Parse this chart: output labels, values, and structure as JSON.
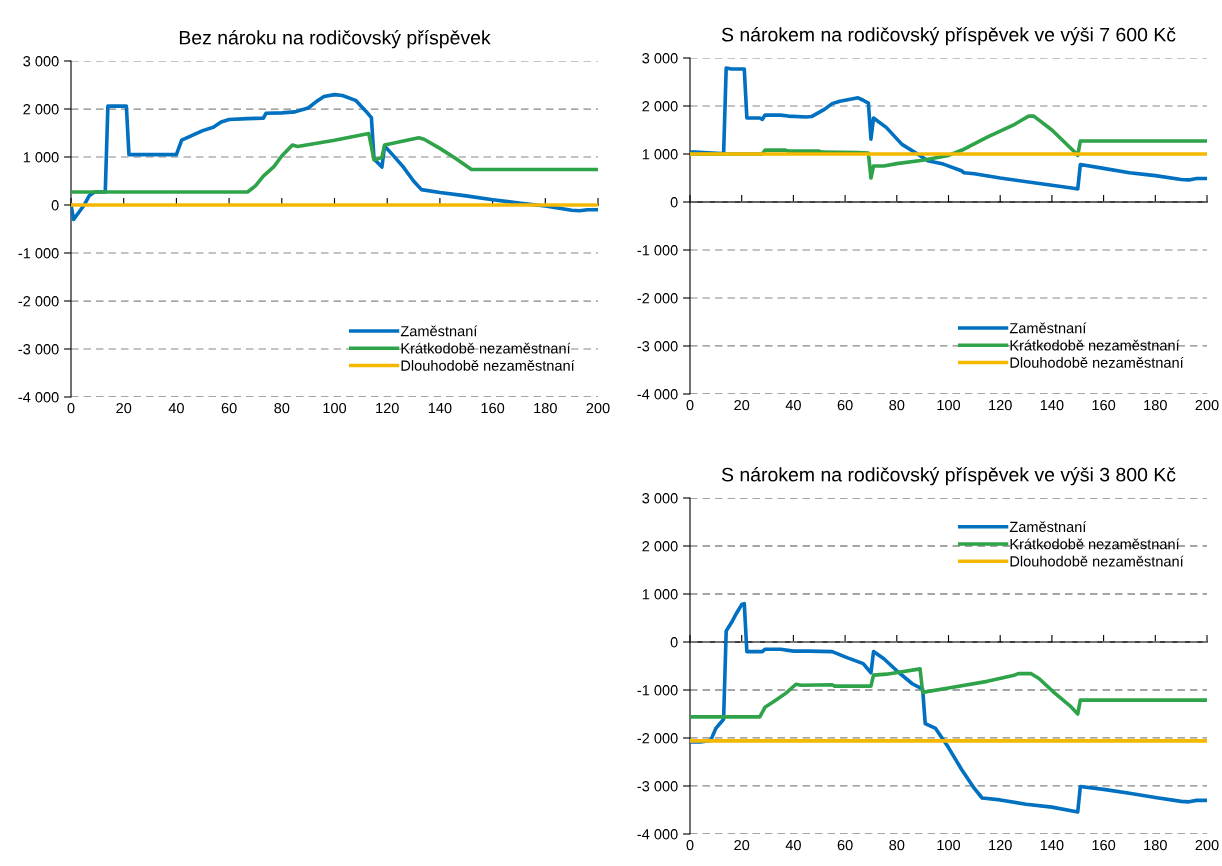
{
  "chart_data": [
    {
      "type": "line",
      "title": "Bez nároku na rodičovský příspěvek",
      "xlim": [
        0,
        200
      ],
      "xticks": [
        0,
        20,
        40,
        60,
        80,
        100,
        120,
        140,
        160,
        180,
        200
      ],
      "ylim": [
        -4000,
        3000
      ],
      "yticks": [
        {
          "value": 3000,
          "label": "3 000"
        },
        {
          "value": 2000,
          "label": "2 000"
        },
        {
          "value": 1000,
          "label": "1 000"
        },
        0,
        {
          "value": -1000,
          "label": "-1 000"
        },
        {
          "value": -2000,
          "label": "-2 000"
        },
        {
          "value": -3000,
          "label": "-3 000"
        },
        {
          "value": -4000,
          "label": "-4 000"
        }
      ],
      "grid": "y",
      "legend": "bottom right",
      "marker": "none",
      "line_style": "solid",
      "series": [
        {
          "name": "Zaměstnaní",
          "color": "#0070c0",
          "x": [
            0,
            1,
            3,
            5,
            7,
            9,
            13,
            14,
            21,
            22,
            30,
            40,
            42,
            46,
            50,
            54,
            57,
            60,
            67,
            73,
            74,
            80,
            85,
            90,
            93,
            96,
            100,
            103,
            108,
            112,
            114,
            115,
            118,
            119,
            122,
            126,
            130,
            133,
            140,
            150,
            160,
            170,
            180,
            190,
            193,
            196,
            200
          ],
          "values": [
            0,
            -300,
            -150,
            0,
            200,
            270,
            270,
            2060,
            2060,
            1050,
            1050,
            1050,
            1350,
            1450,
            1550,
            1620,
            1730,
            1780,
            1800,
            1810,
            1910,
            1920,
            1940,
            2020,
            2150,
            2260,
            2300,
            2280,
            2180,
            1950,
            1820,
            960,
            790,
            1230,
            1050,
            800,
            500,
            320,
            260,
            190,
            110,
            40,
            -20,
            -110,
            -120,
            -100,
            -100
          ]
        },
        {
          "name": "Krátkodobě nezaměstnaní",
          "color": "#2ea34a",
          "x": [
            0,
            67,
            70,
            73,
            77,
            80,
            84,
            86,
            100,
            113,
            115,
            118,
            119,
            132,
            134,
            140,
            146,
            152,
            200
          ],
          "values": [
            270,
            270,
            400,
            600,
            800,
            1020,
            1250,
            1220,
            1350,
            1490,
            940,
            990,
            1250,
            1400,
            1370,
            1180,
            970,
            740,
            740
          ]
        },
        {
          "name": "Dlouhodobě nezaměstnaní",
          "color": "#f5b800",
          "x": [
            0,
            200
          ],
          "values": [
            0,
            0
          ]
        }
      ]
    },
    {
      "type": "line",
      "title": "S nárokem na rodičovský příspěvek ve výši 7 600 Kč",
      "xlim": [
        0,
        200
      ],
      "xticks": [
        0,
        20,
        40,
        60,
        80,
        100,
        120,
        140,
        160,
        180,
        200
      ],
      "ylim": [
        -4000,
        3000
      ],
      "yticks": [
        {
          "value": 3000,
          "label": "3 000"
        },
        {
          "value": 2000,
          "label": "2 000"
        },
        {
          "value": 1000,
          "label": "1 000"
        },
        0,
        {
          "value": -1000,
          "label": "-1 000"
        },
        {
          "value": -2000,
          "label": "-2 000"
        },
        {
          "value": -3000,
          "label": "-3 000"
        },
        {
          "value": -4000,
          "label": "-4 000"
        }
      ],
      "grid": "y",
      "legend": "bottom right",
      "marker": "none",
      "line_style": "solid",
      "series": [
        {
          "name": "Zaměstnaní",
          "color": "#0070c0",
          "x": [
            0,
            2,
            12,
            13,
            14,
            16,
            21,
            22,
            27,
            28,
            29,
            35,
            38,
            45,
            47,
            52,
            55,
            58,
            63,
            65,
            67,
            69,
            70,
            71,
            76,
            82,
            88,
            92,
            98,
            105,
            106,
            110,
            120,
            140,
            149,
            150,
            151,
            160,
            170,
            180,
            190,
            193,
            196,
            200
          ],
          "values": [
            1040,
            1040,
            1010,
            1000,
            2790,
            2770,
            2770,
            1750,
            1750,
            1720,
            1810,
            1810,
            1790,
            1770,
            1780,
            1930,
            2050,
            2100,
            2150,
            2170,
            2120,
            2060,
            1310,
            1750,
            1550,
            1200,
            1000,
            860,
            790,
            650,
            610,
            590,
            500,
            350,
            280,
            270,
            780,
            700,
            610,
            550,
            470,
            460,
            490,
            490
          ]
        },
        {
          "name": "Krátkodobě nezaměstnaní",
          "color": "#2ea34a",
          "x": [
            0,
            28,
            29,
            37,
            38,
            50,
            51,
            65,
            69,
            70,
            71,
            75,
            80,
            90,
            100,
            106,
            115,
            125,
            131,
            133,
            140,
            149,
            150,
            151,
            200
          ],
          "values": [
            1000,
            1000,
            1080,
            1080,
            1060,
            1060,
            1040,
            1030,
            1020,
            500,
            750,
            750,
            800,
            870,
            970,
            1100,
            1350,
            1600,
            1790,
            1790,
            1500,
            1030,
            970,
            1270,
            1270
          ]
        },
        {
          "name": "Dlouhodobě nezaměstnaní",
          "color": "#f5b800",
          "x": [
            0,
            200
          ],
          "values": [
            1000,
            1000
          ]
        }
      ]
    },
    {
      "type": "line",
      "title": "S nárokem na rodičovský příspěvek ve výši 3 800 Kč",
      "xlim": [
        0,
        200
      ],
      "xticks": [
        0,
        20,
        40,
        60,
        80,
        100,
        120,
        140,
        160,
        180,
        200
      ],
      "ylim": [
        -4000,
        3000
      ],
      "yticks": [
        {
          "value": 3000,
          "label": "3 000"
        },
        {
          "value": 2000,
          "label": "2 000"
        },
        {
          "value": 1000,
          "label": "1 000"
        },
        0,
        {
          "value": -1000,
          "label": "-1 000"
        },
        {
          "value": -2000,
          "label": "-2 000"
        },
        {
          "value": -3000,
          "label": "-3 000"
        },
        {
          "value": -4000,
          "label": "-4 000"
        }
      ],
      "grid": "y",
      "legend": "top right",
      "marker": "none",
      "line_style": "solid",
      "series": [
        {
          "name": "Zaměstnaní",
          "color": "#0070c0",
          "x": [
            0,
            4,
            8,
            10,
            13,
            14,
            16,
            18,
            20,
            21,
            22,
            28,
            29,
            35,
            40,
            46,
            55,
            61,
            67,
            70,
            71,
            75,
            80,
            86,
            90,
            91,
            95,
            100,
            105,
            110,
            113,
            120,
            130,
            140,
            149,
            150,
            151,
            160,
            170,
            180,
            190,
            193,
            196,
            200
          ],
          "values": [
            -2080,
            -2080,
            -2050,
            -1800,
            -1610,
            230,
            400,
            600,
            780,
            800,
            -200,
            -200,
            -150,
            -150,
            -190,
            -190,
            -200,
            -330,
            -450,
            -640,
            -200,
            -350,
            -600,
            -870,
            -980,
            -1700,
            -1800,
            -2200,
            -2650,
            -3050,
            -3250,
            -3290,
            -3380,
            -3440,
            -3530,
            -3540,
            -3010,
            -3070,
            -3150,
            -3240,
            -3320,
            -3330,
            -3300,
            -3300
          ]
        },
        {
          "name": "Krátkodobě nezaměstnaní",
          "color": "#2ea34a",
          "x": [
            0,
            27,
            29,
            33,
            37,
            41,
            43,
            55,
            56,
            70,
            71,
            76,
            89,
            90,
            100,
            115,
            125,
            127,
            132,
            135,
            141,
            147,
            150,
            151,
            200
          ],
          "values": [
            -1560,
            -1560,
            -1360,
            -1220,
            -1070,
            -880,
            -900,
            -890,
            -920,
            -920,
            -690,
            -670,
            -560,
            -1050,
            -960,
            -820,
            -700,
            -660,
            -660,
            -760,
            -1060,
            -1330,
            -1500,
            -1210,
            -1210
          ]
        },
        {
          "name": "Dlouhodobě nezaměstnaní",
          "color": "#f5b800",
          "x": [
            0,
            200
          ],
          "values": [
            -2060,
            -2060
          ]
        }
      ]
    }
  ]
}
